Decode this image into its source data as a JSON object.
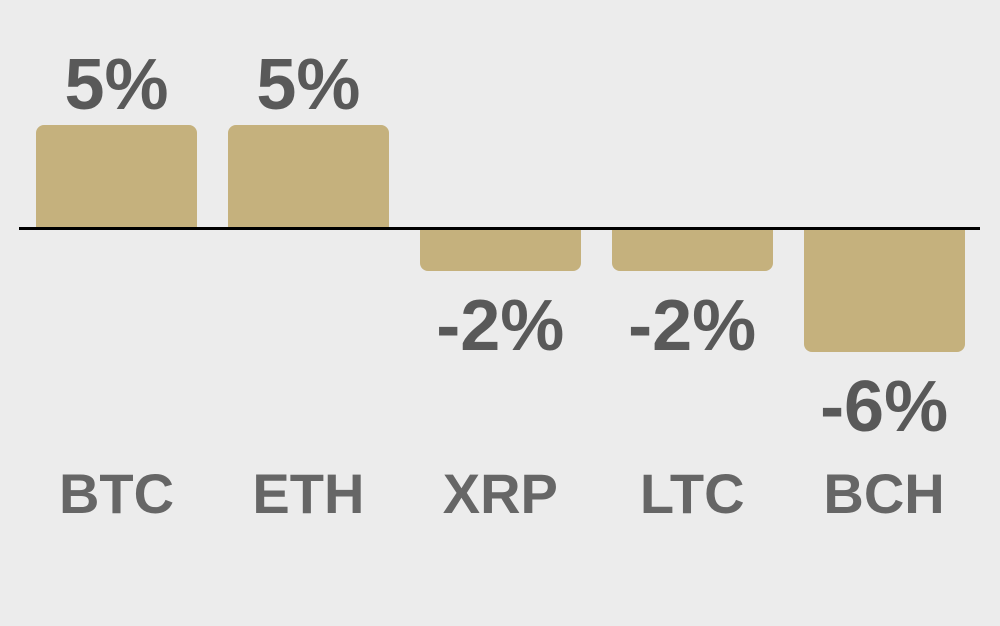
{
  "chart_data": {
    "type": "bar",
    "categories": [
      "BTC",
      "ETH",
      "XRP",
      "LTC",
      "BCH"
    ],
    "values": [
      5,
      5,
      -2,
      -2,
      -6
    ],
    "value_labels": [
      "5%",
      "5%",
      "-2%",
      "-2%",
      "-6%"
    ],
    "title": "",
    "xlabel": "",
    "ylabel": "",
    "ylim": [
      -7,
      6
    ],
    "grid": false,
    "legend": false,
    "colors": {
      "background": "#ececec",
      "bar": "#c5b17d",
      "value_label_text": "#595959",
      "category_label_text": "#666666",
      "axis_line": "#000000"
    }
  }
}
